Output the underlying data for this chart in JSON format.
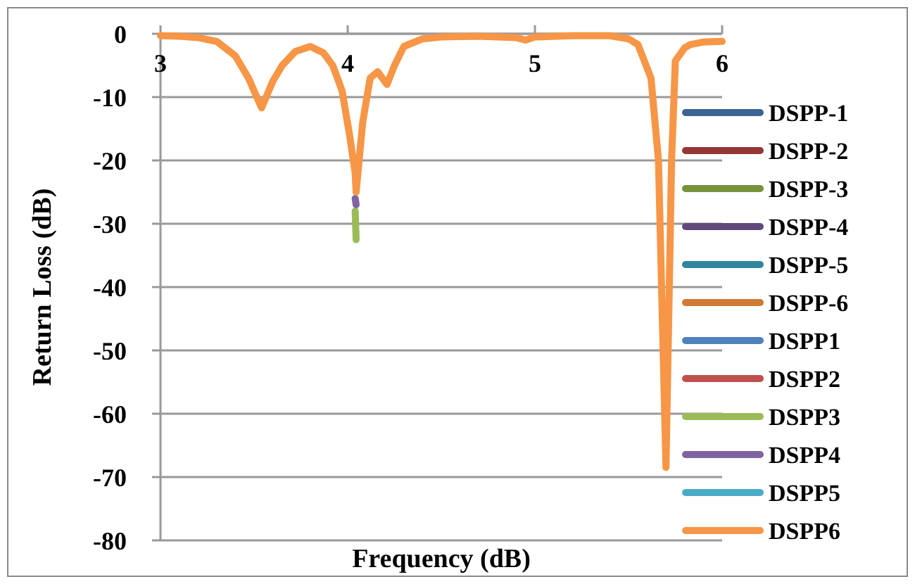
{
  "chart_data": {
    "type": "line",
    "xlabel": "Frequency (dB)",
    "ylabel": "Return Loss (dB)",
    "xlim": [
      3,
      6
    ],
    "xticks": [
      3,
      4,
      5,
      6
    ],
    "ylim": [
      -80,
      0
    ],
    "yticks": [
      0,
      -10,
      -20,
      -30,
      -40,
      -50,
      -60,
      -70,
      -80
    ],
    "grid": "y",
    "legend": "right",
    "marker": "none",
    "line_style": "solid",
    "x": [
      3,
      3.1,
      3.2,
      3.3,
      3.4,
      3.47,
      3.54,
      3.6,
      3.65,
      3.72,
      3.8,
      3.87,
      3.92,
      3.97,
      4.01,
      4.04,
      4.045,
      4.08,
      4.12,
      4.16,
      4.21,
      4.25,
      4.3,
      4.4,
      4.5,
      4.7,
      4.9,
      4.95,
      5.0,
      5.2,
      5.4,
      5.5,
      5.55,
      5.62,
      5.66,
      5.7,
      5.73,
      5.75,
      5.8,
      5.83,
      5.9,
      6
    ],
    "series": [
      {
        "name": "DSPP-1",
        "color": "#3b6396",
        "values": [
          null,
          null,
          null,
          null,
          null,
          null,
          null,
          null,
          null,
          null,
          null,
          null,
          null,
          null,
          null,
          null,
          null,
          null,
          null,
          null,
          null,
          null,
          null,
          null,
          null,
          null,
          null,
          null,
          null,
          null,
          null,
          null,
          null,
          null,
          null,
          null,
          null,
          null,
          null,
          null,
          null,
          null
        ]
      },
      {
        "name": "DSPP-2",
        "color": "#953735",
        "values": [
          null,
          null,
          null,
          null,
          null,
          null,
          null,
          null,
          null,
          null,
          null,
          null,
          null,
          null,
          null,
          null,
          null,
          null,
          null,
          null,
          null,
          null,
          null,
          null,
          null,
          null,
          null,
          null,
          null,
          null,
          null,
          null,
          null,
          null,
          null,
          null,
          null,
          null,
          null,
          null,
          null,
          null
        ]
      },
      {
        "name": "DSPP-3",
        "color": "#77933c",
        "values": [
          null,
          null,
          null,
          null,
          null,
          null,
          null,
          null,
          null,
          null,
          null,
          null,
          null,
          null,
          null,
          null,
          null,
          null,
          null,
          null,
          null,
          null,
          null,
          null,
          null,
          null,
          null,
          null,
          null,
          null,
          null,
          null,
          null,
          null,
          null,
          null,
          null,
          null,
          null,
          null,
          null,
          null
        ]
      },
      {
        "name": "DSPP-4",
        "color": "#604a7b",
        "values": [
          null,
          null,
          null,
          null,
          null,
          null,
          null,
          null,
          null,
          null,
          null,
          null,
          null,
          null,
          null,
          null,
          null,
          null,
          null,
          null,
          null,
          null,
          null,
          null,
          null,
          null,
          null,
          null,
          null,
          null,
          null,
          null,
          null,
          null,
          null,
          null,
          null,
          null,
          null,
          null,
          null,
          null
        ]
      },
      {
        "name": "DSPP-5",
        "color": "#31859c",
        "values": [
          null,
          null,
          null,
          null,
          null,
          null,
          null,
          null,
          null,
          null,
          null,
          null,
          null,
          null,
          null,
          null,
          null,
          null,
          null,
          null,
          null,
          null,
          null,
          null,
          null,
          null,
          null,
          null,
          null,
          null,
          null,
          null,
          null,
          null,
          null,
          null,
          null,
          null,
          null,
          null,
          null,
          null
        ]
      },
      {
        "name": "DSPP-6",
        "color": "#d07a35",
        "values": [
          null,
          null,
          null,
          null,
          null,
          null,
          null,
          null,
          null,
          null,
          null,
          null,
          null,
          null,
          null,
          null,
          null,
          null,
          null,
          null,
          null,
          null,
          null,
          null,
          null,
          null,
          null,
          null,
          null,
          null,
          null,
          null,
          null,
          null,
          null,
          null,
          null,
          null,
          null,
          null,
          null,
          null
        ]
      },
      {
        "name": "DSPP1",
        "color": "#4f81bd",
        "values": [
          null,
          null,
          null,
          null,
          null,
          null,
          null,
          null,
          null,
          null,
          null,
          null,
          null,
          null,
          null,
          null,
          null,
          null,
          null,
          null,
          null,
          null,
          null,
          null,
          null,
          null,
          null,
          null,
          null,
          null,
          null,
          null,
          null,
          null,
          null,
          null,
          null,
          null,
          null,
          null,
          null,
          null
        ]
      },
      {
        "name": "DSPP2",
        "color": "#c0504d",
        "values": [
          null,
          null,
          null,
          null,
          null,
          null,
          null,
          null,
          null,
          null,
          null,
          null,
          null,
          null,
          null,
          null,
          null,
          null,
          null,
          null,
          null,
          null,
          null,
          null,
          null,
          null,
          null,
          null,
          null,
          null,
          null,
          null,
          null,
          null,
          null,
          null,
          null,
          null,
          null,
          null,
          null,
          null
        ]
      },
      {
        "name": "DSPP3",
        "color": "#9bbb59",
        "values": [
          null,
          null,
          null,
          null,
          null,
          null,
          null,
          null,
          null,
          null,
          null,
          null,
          null,
          null,
          null,
          -28,
          -32.5,
          null,
          null,
          null,
          null,
          null,
          null,
          null,
          null,
          null,
          null,
          null,
          null,
          null,
          null,
          null,
          null,
          null,
          null,
          null,
          null,
          null,
          null,
          null,
          null,
          null
        ]
      },
      {
        "name": "DSPP4",
        "color": "#8064a2",
        "values": [
          null,
          null,
          null,
          null,
          null,
          null,
          null,
          null,
          null,
          null,
          null,
          null,
          null,
          null,
          null,
          -26,
          -27,
          null,
          null,
          null,
          null,
          null,
          null,
          null,
          null,
          null,
          null,
          null,
          null,
          null,
          null,
          null,
          null,
          null,
          null,
          null,
          null,
          null,
          null,
          null,
          null,
          null
        ]
      },
      {
        "name": "DSPP5",
        "color": "#4bacc6",
        "values": [
          null,
          null,
          null,
          null,
          null,
          null,
          null,
          null,
          null,
          null,
          null,
          null,
          null,
          null,
          null,
          null,
          null,
          null,
          null,
          null,
          null,
          null,
          null,
          null,
          null,
          null,
          null,
          null,
          null,
          null,
          null,
          null,
          null,
          null,
          null,
          null,
          null,
          null,
          null,
          null,
          null,
          null
        ]
      },
      {
        "name": "DSPP6",
        "color": "#f79646",
        "values": [
          -0.3,
          -0.4,
          -0.6,
          -1.2,
          -3.5,
          -7,
          -11.7,
          -7.5,
          -5,
          -2.8,
          -2,
          -3,
          -5,
          -9,
          -16,
          -22,
          -25,
          -14,
          -7,
          -6,
          -8,
          -5,
          -2,
          -0.8,
          -0.5,
          -0.4,
          -0.6,
          -1,
          -0.5,
          -0.3,
          -0.3,
          -0.8,
          -1.7,
          -7,
          -20,
          -68.5,
          -20,
          -4.3,
          -2.2,
          -1.7,
          -1.3,
          -1.2
        ]
      }
    ]
  }
}
